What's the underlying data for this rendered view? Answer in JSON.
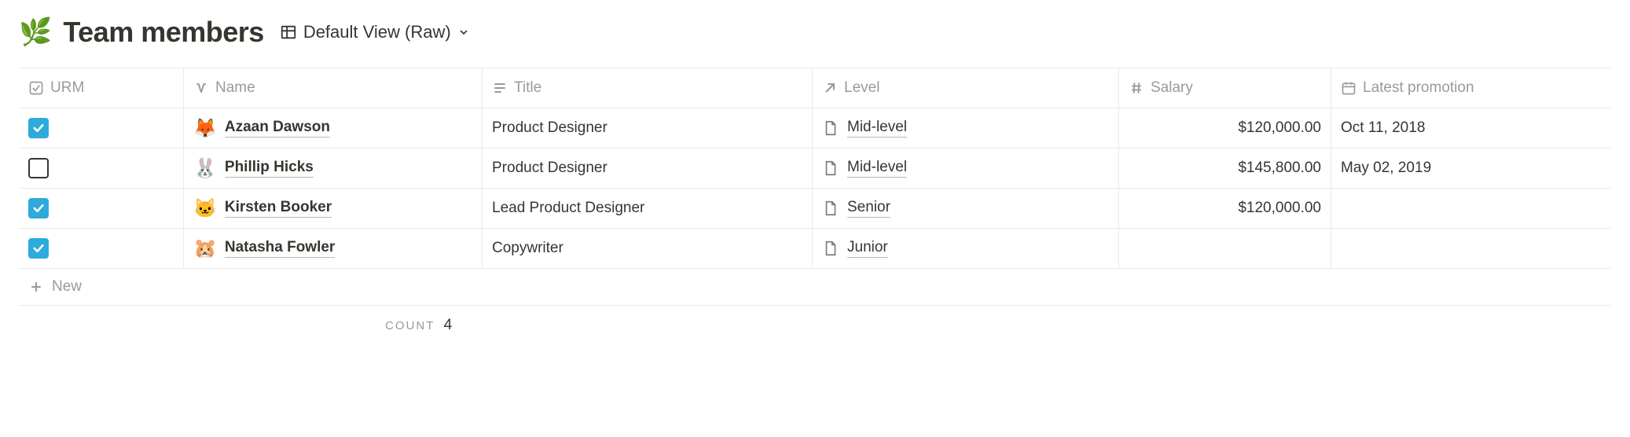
{
  "header": {
    "icon": "🌿",
    "title": "Team members",
    "view_label": "Default View (Raw)"
  },
  "columns": {
    "urm": "URM",
    "name": "Name",
    "title": "Title",
    "level": "Level",
    "salary": "Salary",
    "promo": "Latest promotion"
  },
  "rows": [
    {
      "urm": true,
      "emoji": "🦊",
      "name": "Azaan Dawson",
      "title": "Product Designer",
      "level": "Mid-level",
      "salary": "$120,000.00",
      "promo": "Oct 11, 2018"
    },
    {
      "urm": false,
      "emoji": "🐰",
      "name": "Phillip Hicks",
      "title": "Product Designer",
      "level": "Mid-level",
      "salary": "$145,800.00",
      "promo": "May 02, 2019"
    },
    {
      "urm": true,
      "emoji": "🐱",
      "name": "Kirsten Booker",
      "title": "Lead Product Designer",
      "level": "Senior",
      "salary": "$120,000.00",
      "promo": ""
    },
    {
      "urm": true,
      "emoji": "🐹",
      "name": "Natasha Fowler",
      "title": "Copywriter",
      "level": "Junior",
      "salary": "",
      "promo": ""
    }
  ],
  "new_row_label": "New",
  "footer": {
    "count_label": "COUNT",
    "count_value": "4"
  },
  "colors": {
    "checkbox_fill": "#2eaadc",
    "border": "#e9e9e7",
    "muted": "#9b9a97",
    "text": "#37352f"
  }
}
